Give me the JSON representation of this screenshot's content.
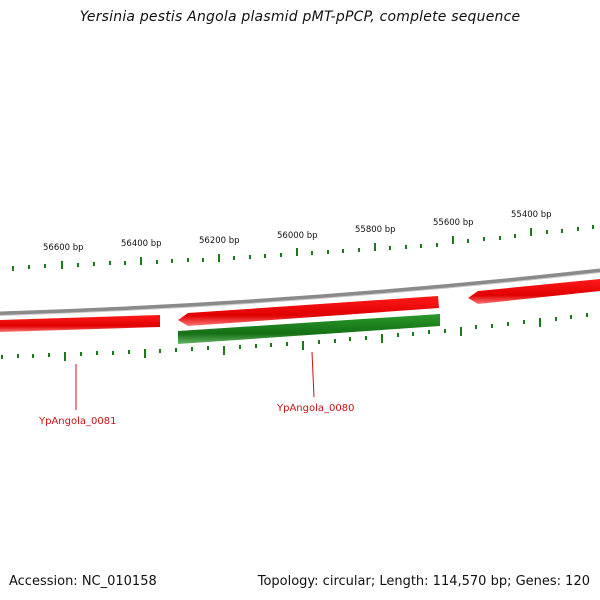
{
  "title": "Yersinia pestis Angola plasmid pMT-pPCP, complete sequence",
  "footer": {
    "accession": "Accession: NC_010158",
    "summary": "Topology: circular; Length: 114,570 bp; Genes: 120"
  },
  "scale_labels": [
    "56600 bp",
    "56400 bp",
    "56200 bp",
    "56000 bp",
    "55800 bp",
    "55600 bp",
    "55400 bp"
  ],
  "genes": [
    {
      "name": "YpAngola_0081",
      "color": "#cc1111"
    },
    {
      "name": "YpAngola_0080",
      "color": "#cc1111"
    }
  ],
  "colors": {
    "forward_gene": "#ee1111",
    "reverse_gene": "#1f7a1f",
    "backbone": "#8a8a8a",
    "ticks": "#1a7a1a"
  }
}
